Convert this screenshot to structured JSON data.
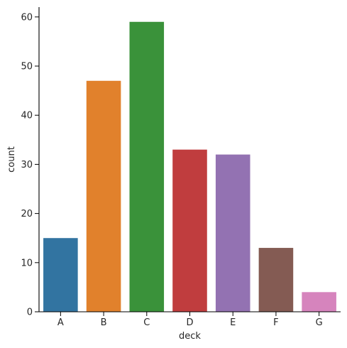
{
  "chart_data": {
    "type": "bar",
    "categories": [
      "A",
      "B",
      "C",
      "D",
      "E",
      "F",
      "G"
    ],
    "values": [
      15,
      47,
      59,
      33,
      32,
      13,
      4
    ],
    "colors": [
      "#3274a1",
      "#e1812c",
      "#3a923a",
      "#c03d3e",
      "#9372b2",
      "#845b53",
      "#d684bd"
    ],
    "xlabel": "deck",
    "ylabel": "count",
    "ylim": [
      0,
      62
    ],
    "yticks": [
      0,
      10,
      20,
      30,
      40,
      50,
      60
    ],
    "grid": false,
    "legend": "none"
  }
}
